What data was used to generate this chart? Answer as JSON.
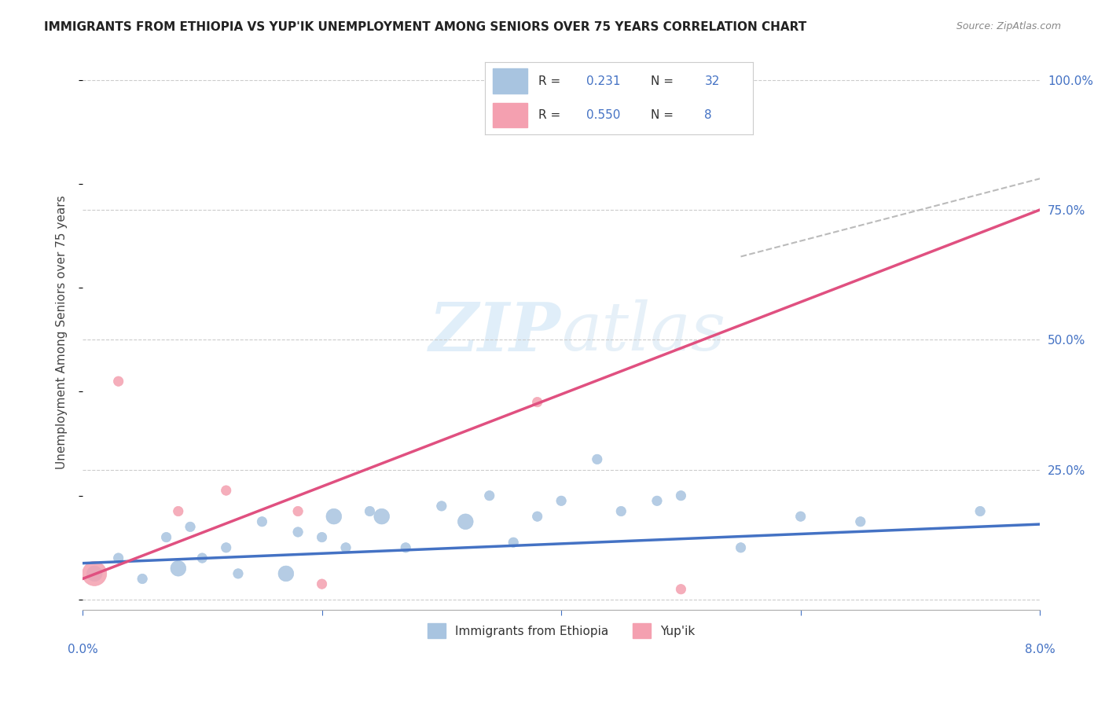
{
  "title": "IMMIGRANTS FROM ETHIOPIA VS YUP'IK UNEMPLOYMENT AMONG SENIORS OVER 75 YEARS CORRELATION CHART",
  "source": "Source: ZipAtlas.com",
  "ylabel": "Unemployment Among Seniors over 75 years",
  "xmin": 0.0,
  "xmax": 0.08,
  "ymin": -0.02,
  "ymax": 1.05,
  "watermark_zip": "ZIP",
  "watermark_atlas": "atlas",
  "blue_color": "#a8c4e0",
  "pink_color": "#f4a0b0",
  "line_blue": "#4472c4",
  "line_pink": "#e05080",
  "text_blue": "#4472c4",
  "ethiopia_points_x": [
    0.001,
    0.003,
    0.005,
    0.007,
    0.008,
    0.009,
    0.01,
    0.012,
    0.013,
    0.015,
    0.017,
    0.018,
    0.02,
    0.021,
    0.022,
    0.024,
    0.025,
    0.027,
    0.03,
    0.032,
    0.034,
    0.036,
    0.038,
    0.04,
    0.043,
    0.045,
    0.048,
    0.05,
    0.055,
    0.06,
    0.065,
    0.075
  ],
  "ethiopia_points_y": [
    0.05,
    0.08,
    0.04,
    0.12,
    0.06,
    0.14,
    0.08,
    0.1,
    0.05,
    0.15,
    0.05,
    0.13,
    0.12,
    0.16,
    0.1,
    0.17,
    0.16,
    0.1,
    0.18,
    0.15,
    0.2,
    0.11,
    0.16,
    0.19,
    0.27,
    0.17,
    0.19,
    0.2,
    0.1,
    0.16,
    0.15,
    0.17
  ],
  "ethiopia_sizes": [
    200,
    80,
    80,
    80,
    200,
    80,
    80,
    80,
    80,
    80,
    200,
    80,
    80,
    200,
    80,
    80,
    200,
    80,
    80,
    200,
    80,
    80,
    80,
    80,
    80,
    80,
    80,
    80,
    80,
    80,
    80,
    80
  ],
  "yupik_points_x": [
    0.001,
    0.003,
    0.008,
    0.012,
    0.018,
    0.02,
    0.038,
    0.05
  ],
  "yupik_points_y": [
    0.05,
    0.42,
    0.17,
    0.21,
    0.17,
    0.03,
    0.38,
    0.02
  ],
  "yupik_sizes": [
    500,
    80,
    80,
    80,
    80,
    80,
    80,
    80
  ],
  "blue_trendline": [
    0.0,
    0.08,
    0.07,
    0.145
  ],
  "pink_trendline": [
    0.0,
    0.08,
    0.04,
    0.75
  ],
  "pink_dashed_extend": [
    0.055,
    0.1,
    0.66,
    0.93
  ],
  "ytick_vals": [
    0.0,
    0.25,
    0.5,
    0.75,
    1.0
  ],
  "ytick_labels": [
    "",
    "25.0%",
    "50.0%",
    "75.0%",
    "100.0%"
  ],
  "xtick_positions": [
    0.0,
    0.02,
    0.04,
    0.06,
    0.08
  ],
  "legend_r1": "0.231",
  "legend_n1": "32",
  "legend_r2": "0.550",
  "legend_n2": "8"
}
